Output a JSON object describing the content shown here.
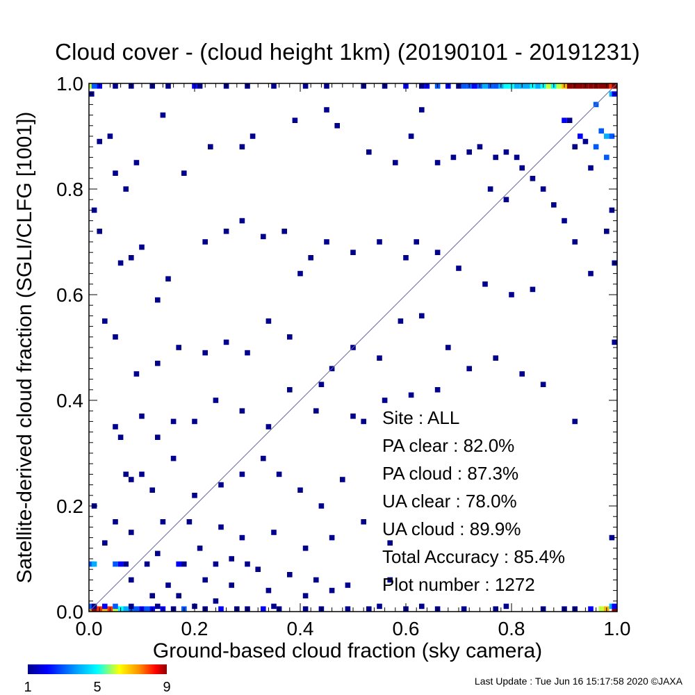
{
  "chart_data": {
    "type": "heatmap",
    "title": "Cloud cover - (cloud height 1km)  (20190101 - 20191231)",
    "xlabel": "Ground-based cloud fraction (sky camera)",
    "ylabel": "Satellite-derived cloud fraction (SGLI/CLFG [1001])",
    "xlim": [
      0.0,
      1.0
    ],
    "ylim": [
      0.0,
      1.0
    ],
    "x_ticks": [
      "0.0",
      "0.2",
      "0.4",
      "0.6",
      "0.8",
      "1.0"
    ],
    "y_ticks": [
      "0.0",
      "0.2",
      "0.4",
      "0.6",
      "0.8",
      "1.0"
    ],
    "bin_size": 0.01,
    "reference_line": "1:1 diagonal",
    "grid": false,
    "colorbar": {
      "min": 1,
      "max": 9,
      "ticks": [
        "1",
        "5",
        "9"
      ],
      "colors": [
        "#00008c",
        "#0000ff",
        "#00a0ff",
        "#00ffff",
        "#ffff00",
        "#ff9000",
        "#ff0000",
        "#8c0000"
      ]
    },
    "stats_lines": [
      "Site : ALL",
      "PA clear :  82.0%",
      "PA cloud :  87.3%",
      "UA clear :  78.0%",
      "UA cloud :  89.9%",
      "Total Accuracy :  85.4%",
      "Plot number :       1272"
    ],
    "cells": [
      [
        0.0,
        1.0,
        6
      ],
      [
        0.01,
        1.0,
        3
      ],
      [
        0.02,
        1.0,
        2
      ],
      [
        0.05,
        1.0,
        1
      ],
      [
        0.08,
        1.0,
        1
      ],
      [
        0.12,
        1.0,
        1
      ],
      [
        0.15,
        1.0,
        1
      ],
      [
        0.2,
        1.0,
        2
      ],
      [
        0.21,
        1.0,
        1
      ],
      [
        0.26,
        1.0,
        1
      ],
      [
        0.3,
        1.0,
        1
      ],
      [
        0.35,
        1.0,
        1
      ],
      [
        0.41,
        1.0,
        1
      ],
      [
        0.45,
        1.0,
        1
      ],
      [
        0.52,
        1.0,
        1
      ],
      [
        0.56,
        1.0,
        1
      ],
      [
        0.6,
        1.0,
        2
      ],
      [
        0.63,
        1.0,
        1
      ],
      [
        0.64,
        1.0,
        2
      ],
      [
        0.66,
        1.0,
        3
      ],
      [
        0.68,
        1.0,
        2
      ],
      [
        0.7,
        1.0,
        1
      ],
      [
        0.71,
        1.0,
        3
      ],
      [
        0.72,
        1.0,
        3
      ],
      [
        0.73,
        1.0,
        2
      ],
      [
        0.74,
        1.0,
        3
      ],
      [
        0.75,
        1.0,
        4
      ],
      [
        0.76,
        1.0,
        3
      ],
      [
        0.77,
        1.0,
        3
      ],
      [
        0.78,
        1.0,
        4
      ],
      [
        0.79,
        1.0,
        5
      ],
      [
        0.8,
        1.0,
        5
      ],
      [
        0.81,
        1.0,
        4
      ],
      [
        0.82,
        1.0,
        4
      ],
      [
        0.83,
        1.0,
        4
      ],
      [
        0.84,
        1.0,
        5
      ],
      [
        0.85,
        1.0,
        4
      ],
      [
        0.86,
        1.0,
        5
      ],
      [
        0.87,
        1.0,
        6
      ],
      [
        0.88,
        1.0,
        5
      ],
      [
        0.89,
        1.0,
        6
      ],
      [
        0.9,
        1.0,
        7
      ],
      [
        0.91,
        1.0,
        9
      ],
      [
        0.92,
        1.0,
        9
      ],
      [
        0.93,
        1.0,
        9
      ],
      [
        0.94,
        1.0,
        9
      ],
      [
        0.95,
        1.0,
        9
      ],
      [
        0.96,
        1.0,
        9
      ],
      [
        0.97,
        1.0,
        9
      ],
      [
        0.98,
        1.0,
        9
      ],
      [
        0.99,
        1.0,
        8
      ],
      [
        1.0,
        1.0,
        9
      ],
      [
        0.0,
        0.0,
        7
      ],
      [
        0.01,
        0.0,
        9
      ],
      [
        0.02,
        0.0,
        8
      ],
      [
        0.03,
        0.0,
        7
      ],
      [
        0.04,
        0.0,
        8
      ],
      [
        0.05,
        0.0,
        6
      ],
      [
        0.06,
        0.0,
        5
      ],
      [
        0.07,
        0.0,
        4
      ],
      [
        0.08,
        0.0,
        3
      ],
      [
        0.09,
        0.0,
        3
      ],
      [
        0.1,
        0.0,
        2
      ],
      [
        0.11,
        0.0,
        3
      ],
      [
        0.12,
        0.0,
        2
      ],
      [
        0.14,
        0.0,
        2
      ],
      [
        0.16,
        0.0,
        1
      ],
      [
        0.18,
        0.0,
        3
      ],
      [
        0.22,
        0.0,
        1
      ],
      [
        0.25,
        0.0,
        2
      ],
      [
        0.28,
        0.0,
        1
      ],
      [
        0.3,
        0.0,
        1
      ],
      [
        0.33,
        0.0,
        2
      ],
      [
        0.36,
        0.0,
        1
      ],
      [
        0.41,
        0.0,
        1
      ],
      [
        0.44,
        0.0,
        1
      ],
      [
        0.49,
        0.0,
        1
      ],
      [
        0.53,
        0.0,
        1
      ],
      [
        0.6,
        0.0,
        1
      ],
      [
        0.66,
        0.0,
        1
      ],
      [
        0.71,
        0.0,
        1
      ],
      [
        0.77,
        0.0,
        1
      ],
      [
        0.86,
        0.0,
        1
      ],
      [
        0.9,
        0.0,
        1
      ],
      [
        0.92,
        0.0,
        1
      ],
      [
        0.95,
        0.0,
        2
      ],
      [
        0.97,
        0.0,
        6
      ],
      [
        0.98,
        0.0,
        7
      ],
      [
        1.0,
        0.0,
        9
      ],
      [
        0.0,
        0.01,
        3
      ],
      [
        0.01,
        0.01,
        1
      ],
      [
        0.03,
        0.01,
        2
      ],
      [
        0.05,
        0.01,
        3
      ],
      [
        0.08,
        0.01,
        1
      ],
      [
        0.13,
        0.01,
        1
      ],
      [
        0.2,
        0.01,
        1
      ],
      [
        0.35,
        0.01,
        1
      ],
      [
        0.55,
        0.01,
        1
      ],
      [
        0.63,
        0.01,
        1
      ],
      [
        0.79,
        0.01,
        1
      ],
      [
        0.99,
        0.01,
        4
      ],
      [
        1.0,
        0.01,
        2
      ],
      [
        0.0,
        0.09,
        3
      ],
      [
        0.01,
        0.09,
        4
      ],
      [
        0.05,
        0.09,
        3
      ],
      [
        0.06,
        0.09,
        2
      ],
      [
        0.07,
        0.09,
        1
      ],
      [
        0.11,
        0.09,
        1
      ],
      [
        0.17,
        0.09,
        2
      ],
      [
        0.18,
        0.09,
        1
      ],
      [
        0.24,
        0.09,
        1
      ],
      [
        0.3,
        0.09,
        1
      ],
      [
        0.0,
        0.98,
        1
      ],
      [
        0.99,
        0.98,
        4
      ],
      [
        1.0,
        0.98,
        2
      ],
      [
        0.98,
        0.9,
        4
      ],
      [
        0.99,
        0.9,
        3
      ],
      [
        0.97,
        0.91,
        3
      ],
      [
        0.98,
        0.86,
        3
      ],
      [
        0.96,
        0.96,
        3
      ],
      [
        0.02,
        0.89,
        1
      ],
      [
        0.04,
        0.9,
        1
      ],
      [
        0.14,
        0.94,
        1
      ],
      [
        0.05,
        0.83,
        1
      ],
      [
        0.09,
        0.85,
        1
      ],
      [
        0.07,
        0.8,
        1
      ],
      [
        0.01,
        0.76,
        1
      ],
      [
        0.02,
        0.72,
        1
      ],
      [
        0.18,
        0.83,
        1
      ],
      [
        0.23,
        0.88,
        1
      ],
      [
        0.29,
        0.88,
        1
      ],
      [
        0.31,
        0.9,
        1
      ],
      [
        0.39,
        0.93,
        1
      ],
      [
        0.45,
        0.95,
        1
      ],
      [
        0.47,
        0.92,
        1
      ],
      [
        0.53,
        0.87,
        1
      ],
      [
        0.58,
        0.85,
        1
      ],
      [
        0.61,
        0.9,
        1
      ],
      [
        0.63,
        0.95,
        1
      ],
      [
        0.66,
        0.85,
        1
      ],
      [
        0.69,
        0.86,
        1
      ],
      [
        0.72,
        0.87,
        1
      ],
      [
        0.74,
        0.88,
        1
      ],
      [
        0.77,
        0.86,
        1
      ],
      [
        0.79,
        0.87,
        1
      ],
      [
        0.82,
        0.84,
        1
      ],
      [
        0.84,
        0.82,
        1
      ],
      [
        0.86,
        0.8,
        1
      ],
      [
        0.88,
        0.77,
        1
      ],
      [
        0.9,
        0.74,
        1
      ],
      [
        0.92,
        0.7,
        1
      ],
      [
        0.95,
        0.64,
        1
      ],
      [
        0.13,
        0.59,
        1
      ],
      [
        0.15,
        0.63,
        1
      ],
      [
        0.1,
        0.69,
        1
      ],
      [
        0.06,
        0.66,
        1
      ],
      [
        0.08,
        0.67,
        1
      ],
      [
        0.22,
        0.7,
        1
      ],
      [
        0.26,
        0.72,
        1
      ],
      [
        0.29,
        0.74,
        1
      ],
      [
        0.33,
        0.71,
        1
      ],
      [
        0.37,
        0.72,
        1
      ],
      [
        0.4,
        0.64,
        1
      ],
      [
        0.42,
        0.67,
        1
      ],
      [
        0.45,
        0.7,
        1
      ],
      [
        0.5,
        0.68,
        1
      ],
      [
        0.55,
        0.7,
        1
      ],
      [
        0.6,
        0.67,
        1
      ],
      [
        0.62,
        0.7,
        1
      ],
      [
        0.66,
        0.68,
        1
      ],
      [
        0.7,
        0.65,
        1
      ],
      [
        0.75,
        0.62,
        1
      ],
      [
        0.8,
        0.6,
        1
      ],
      [
        0.84,
        0.61,
        1
      ],
      [
        0.03,
        0.55,
        1
      ],
      [
        0.05,
        0.52,
        1
      ],
      [
        0.09,
        0.45,
        1
      ],
      [
        0.13,
        0.47,
        1
      ],
      [
        0.17,
        0.5,
        1
      ],
      [
        0.22,
        0.49,
        1
      ],
      [
        0.26,
        0.51,
        1
      ],
      [
        0.3,
        0.49,
        1
      ],
      [
        0.34,
        0.55,
        1
      ],
      [
        0.38,
        0.52,
        1
      ],
      [
        0.44,
        0.43,
        1
      ],
      [
        0.46,
        0.46,
        1
      ],
      [
        0.5,
        0.5,
        1
      ],
      [
        0.55,
        0.48,
        1
      ],
      [
        0.59,
        0.55,
        1
      ],
      [
        0.63,
        0.56,
        1
      ],
      [
        0.68,
        0.5,
        1
      ],
      [
        0.72,
        0.46,
        1
      ],
      [
        0.77,
        0.48,
        1
      ],
      [
        0.82,
        0.45,
        1
      ],
      [
        0.86,
        0.43,
        1
      ],
      [
        0.05,
        0.35,
        1
      ],
      [
        0.06,
        0.33,
        1
      ],
      [
        0.1,
        0.37,
        1
      ],
      [
        0.13,
        0.33,
        1
      ],
      [
        0.16,
        0.36,
        1
      ],
      [
        0.2,
        0.36,
        1
      ],
      [
        0.24,
        0.4,
        1
      ],
      [
        0.29,
        0.38,
        1
      ],
      [
        0.34,
        0.35,
        1
      ],
      [
        0.38,
        0.42,
        1
      ],
      [
        0.43,
        0.38,
        1
      ],
      [
        0.5,
        0.37,
        1
      ],
      [
        0.56,
        0.4,
        1
      ],
      [
        0.61,
        0.41,
        1
      ],
      [
        0.66,
        0.42,
        1
      ],
      [
        0.07,
        0.26,
        1
      ],
      [
        0.08,
        0.25,
        1
      ],
      [
        0.1,
        0.26,
        1
      ],
      [
        0.12,
        0.23,
        1
      ],
      [
        0.16,
        0.29,
        1
      ],
      [
        0.2,
        0.22,
        1
      ],
      [
        0.25,
        0.24,
        1
      ],
      [
        0.29,
        0.26,
        1
      ],
      [
        0.33,
        0.29,
        1
      ],
      [
        0.36,
        0.26,
        1
      ],
      [
        0.4,
        0.23,
        1
      ],
      [
        0.44,
        0.2,
        1
      ],
      [
        0.48,
        0.25,
        1
      ],
      [
        0.01,
        0.2,
        1
      ],
      [
        0.05,
        0.17,
        1
      ],
      [
        0.08,
        0.15,
        1
      ],
      [
        0.14,
        0.17,
        1
      ],
      [
        0.19,
        0.17,
        1
      ],
      [
        0.25,
        0.16,
        1
      ],
      [
        0.29,
        0.14,
        1
      ],
      [
        0.35,
        0.15,
        1
      ],
      [
        0.41,
        0.12,
        1
      ],
      [
        0.46,
        0.14,
        1
      ],
      [
        0.52,
        0.17,
        1
      ],
      [
        0.57,
        0.13,
        1
      ],
      [
        0.03,
        0.13,
        1
      ],
      [
        0.13,
        0.11,
        1
      ],
      [
        0.21,
        0.12,
        1
      ],
      [
        0.27,
        0.1,
        1
      ],
      [
        0.32,
        0.08,
        1
      ],
      [
        0.38,
        0.07,
        1
      ],
      [
        0.43,
        0.06,
        1
      ],
      [
        0.49,
        0.05,
        1
      ],
      [
        0.08,
        0.06,
        1
      ],
      [
        0.15,
        0.05,
        1
      ],
      [
        0.22,
        0.06,
        1
      ],
      [
        0.27,
        0.05,
        1
      ],
      [
        0.34,
        0.04,
        1
      ],
      [
        0.41,
        0.03,
        1
      ],
      [
        0.46,
        0.04,
        1
      ],
      [
        0.12,
        0.03,
        1
      ],
      [
        0.17,
        0.03,
        1
      ],
      [
        0.24,
        0.02,
        1
      ],
      [
        0.52,
        0.36,
        1
      ],
      [
        0.57,
        0.06,
        1
      ],
      [
        0.99,
        0.14,
        1
      ],
      [
        1.0,
        0.51,
        1
      ],
      [
        0.99,
        0.76,
        1
      ],
      [
        0.98,
        0.72,
        1
      ],
      [
        1.0,
        0.66,
        1
      ],
      [
        0.9,
        0.93,
        2
      ],
      [
        0.91,
        0.93,
        1
      ],
      [
        0.93,
        0.9,
        2
      ],
      [
        0.94,
        0.89,
        1
      ],
      [
        0.96,
        0.88,
        3
      ],
      [
        0.92,
        0.88,
        1
      ],
      [
        0.95,
        0.84,
        1
      ],
      [
        0.92,
        0.36,
        1
      ],
      [
        0.81,
        0.86,
        1
      ],
      [
        0.79,
        0.78,
        1
      ],
      [
        0.76,
        0.8,
        1
      ]
    ]
  },
  "footer": "Last Update : Tue Jun 16 15:17:58 2020  ©JAXA"
}
